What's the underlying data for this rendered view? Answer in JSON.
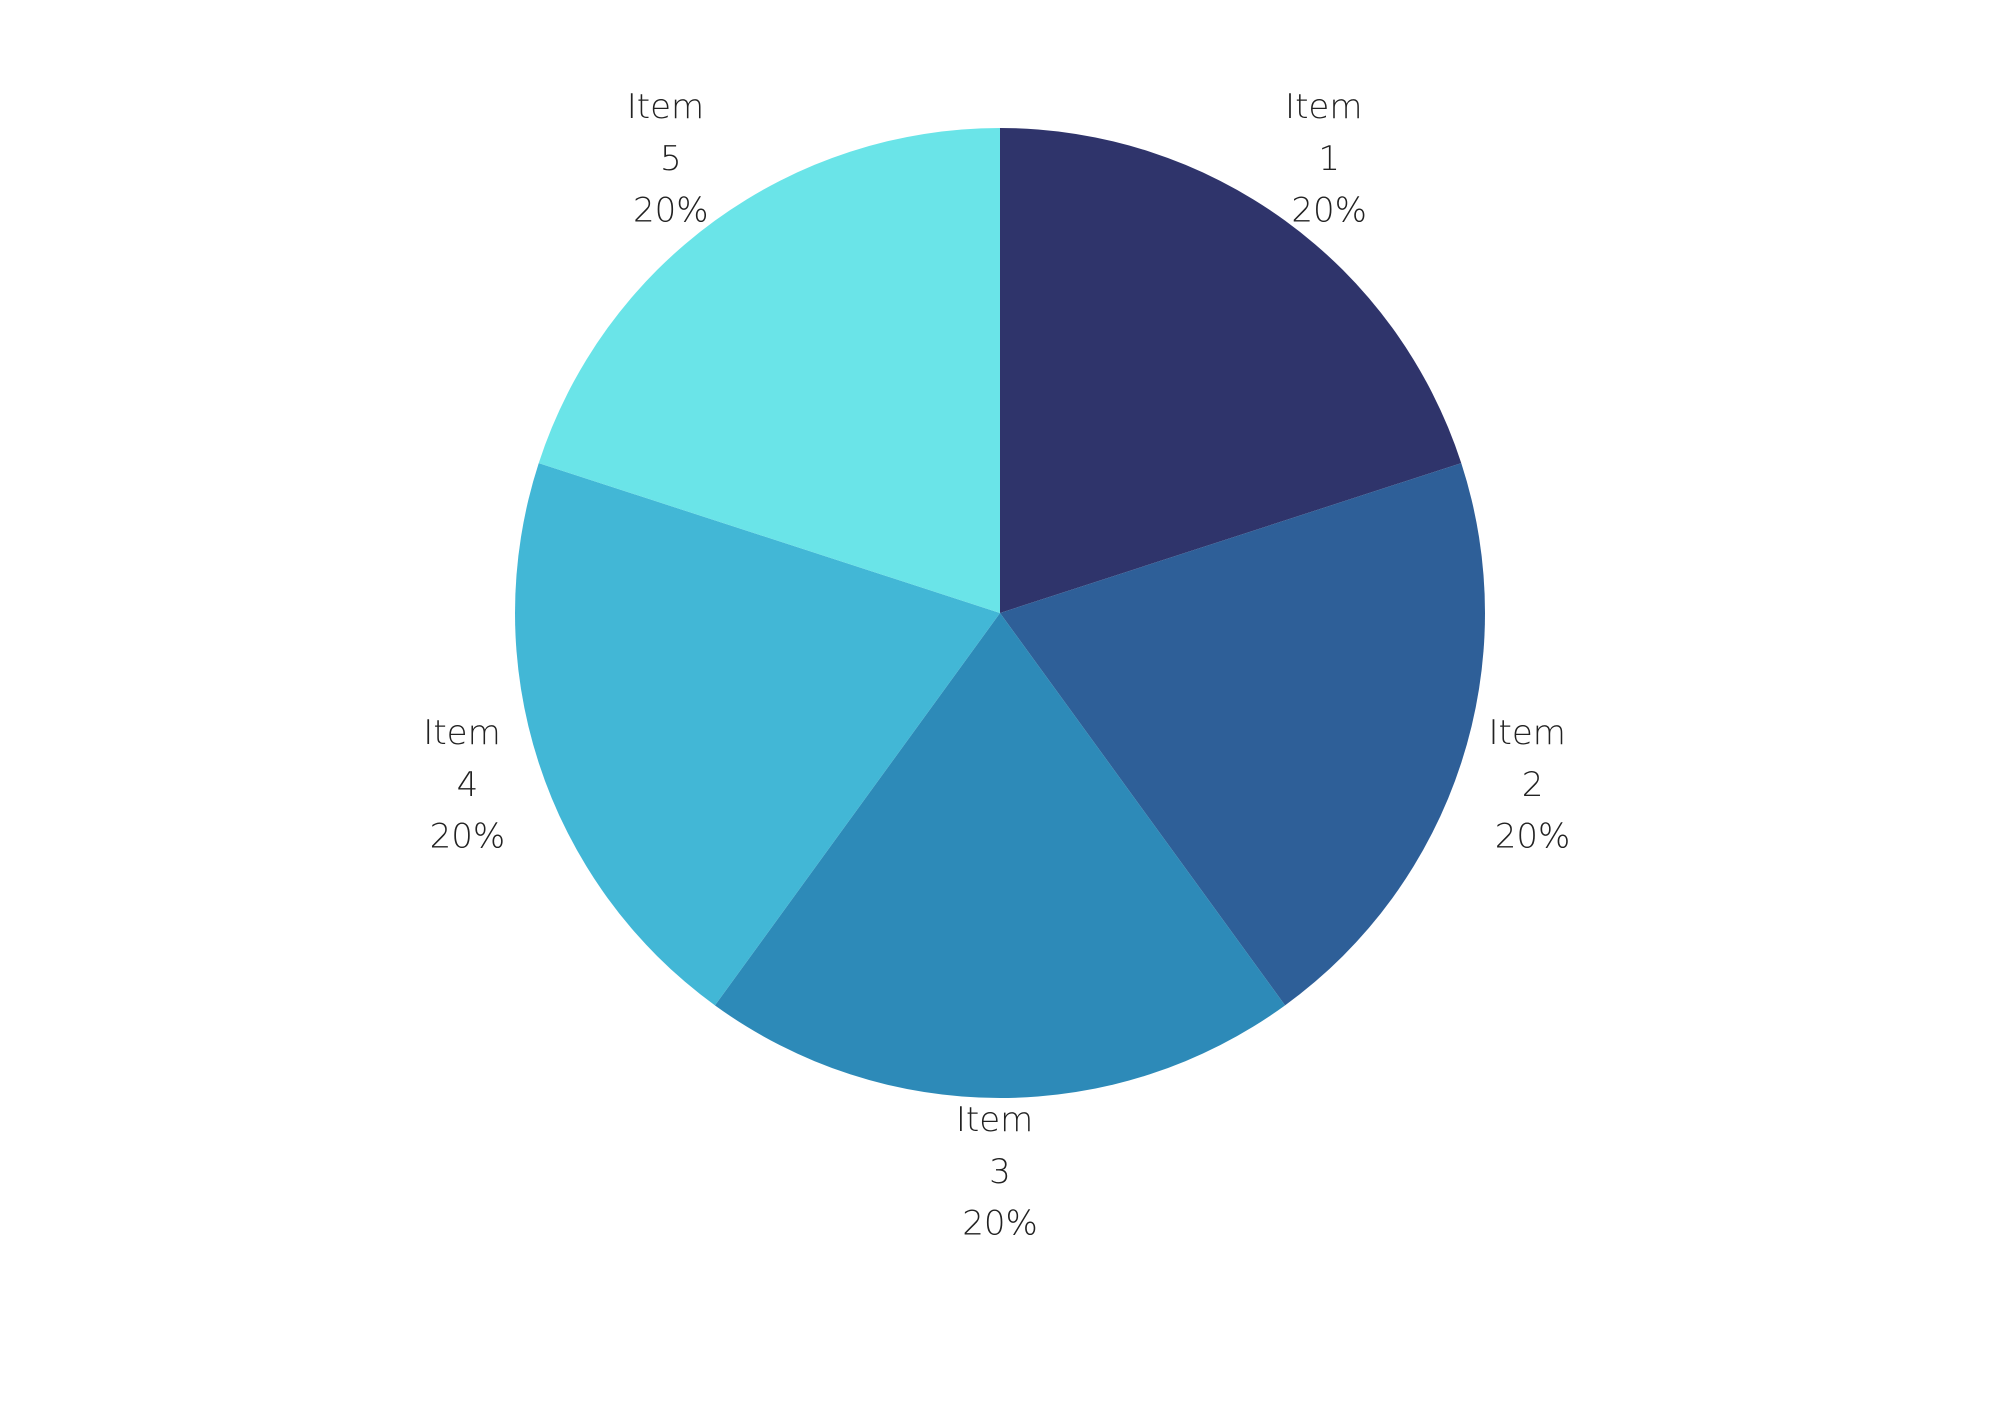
{
  "chart_data": {
    "type": "pie",
    "categories": [
      "Item 1",
      "Item 2",
      "Item 3",
      "Item 4",
      "Item 5"
    ],
    "values": [
      20,
      20,
      20,
      20,
      20
    ],
    "value_labels": [
      "20%",
      "20%",
      "20%",
      "20%",
      "20%"
    ],
    "colors": [
      "#2f346b",
      "#2e5f98",
      "#2d8ab8",
      "#42b7d6",
      "#6ae4e8"
    ]
  }
}
